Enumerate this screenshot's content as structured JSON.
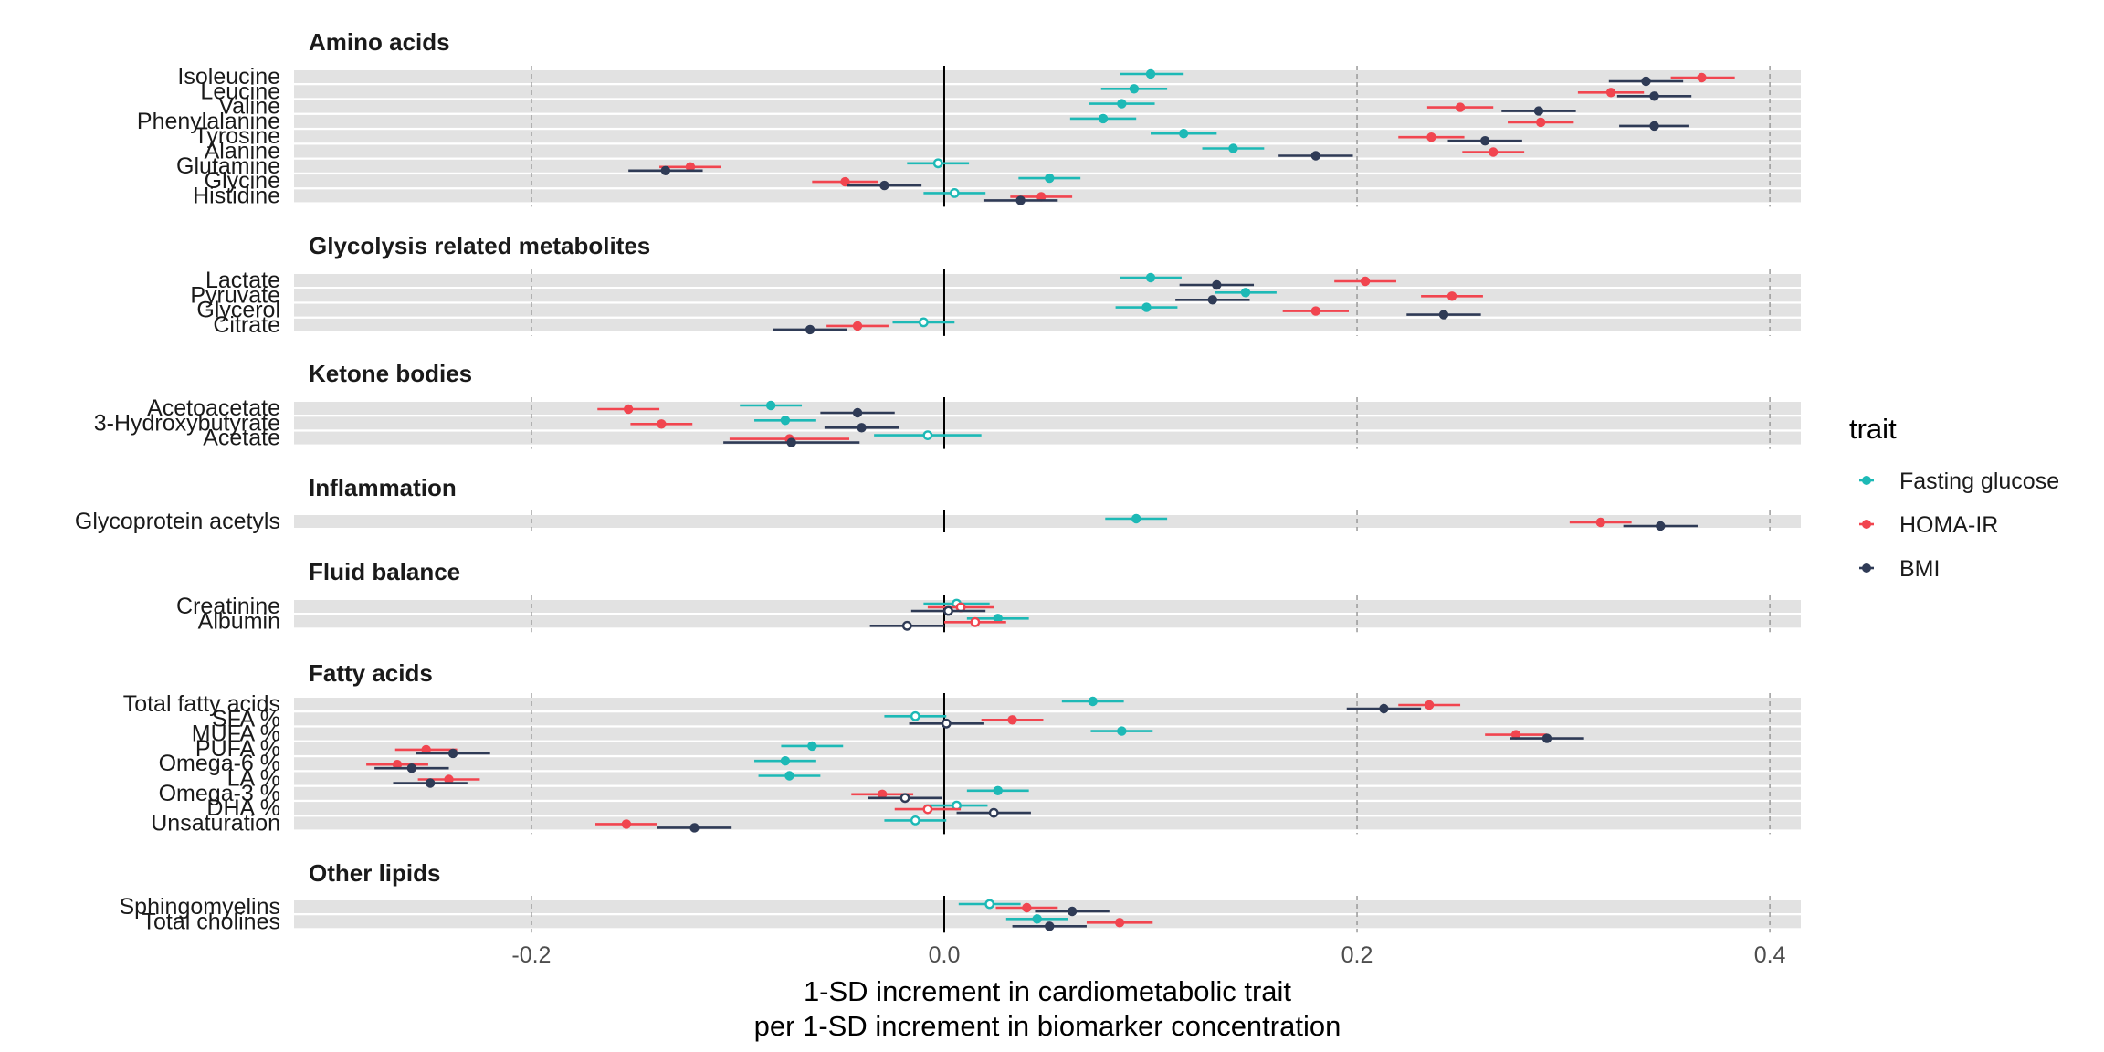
{
  "chart_data": {
    "type": "forest",
    "xlabel_line1": "1-SD increment in cardiometabolic trait",
    "xlabel_line2": "per 1-SD increment in biomarker concentration",
    "xlim": [
      -0.315,
      0.415
    ],
    "x_ticks": [
      -0.2,
      0.0,
      0.2,
      0.4
    ],
    "x_tick_labels": [
      "-0.2",
      "0.0",
      "0.2",
      "0.4"
    ],
    "legend_title": "trait",
    "legend_position": "right",
    "series": [
      {
        "key": "FG",
        "name": "Fasting glucose",
        "color": "#1DB9B6"
      },
      {
        "key": "HOMA",
        "name": "HOMA-IR",
        "color": "#F1454F"
      },
      {
        "key": "BMI",
        "name": "BMI",
        "color": "#2F3B56"
      }
    ],
    "panels": [
      {
        "title": "Amino acids",
        "rows": [
          {
            "label": "Isoleucine",
            "FG": {
              "est": 0.1,
              "lo": 0.085,
              "hi": 0.116,
              "sig": true
            },
            "HOMA": {
              "est": 0.367,
              "lo": 0.352,
              "hi": 0.383,
              "sig": true
            },
            "BMI": {
              "est": 0.34,
              "lo": 0.322,
              "hi": 0.358,
              "sig": true
            }
          },
          {
            "label": "Leucine",
            "FG": {
              "est": 0.092,
              "lo": 0.076,
              "hi": 0.108,
              "sig": true
            },
            "HOMA": {
              "est": 0.323,
              "lo": 0.307,
              "hi": 0.339,
              "sig": true
            },
            "BMI": {
              "est": 0.344,
              "lo": 0.326,
              "hi": 0.362,
              "sig": true
            }
          },
          {
            "label": "Valine",
            "FG": {
              "est": 0.086,
              "lo": 0.07,
              "hi": 0.102,
              "sig": true
            },
            "HOMA": {
              "est": 0.25,
              "lo": 0.234,
              "hi": 0.266,
              "sig": true
            },
            "BMI": {
              "est": 0.288,
              "lo": 0.27,
              "hi": 0.306,
              "sig": true
            }
          },
          {
            "label": "Phenylalanine",
            "FG": {
              "est": 0.077,
              "lo": 0.061,
              "hi": 0.093,
              "sig": true
            },
            "HOMA": {
              "est": 0.289,
              "lo": 0.273,
              "hi": 0.305,
              "sig": true
            },
            "BMI": {
              "est": 0.344,
              "lo": 0.327,
              "hi": 0.361,
              "sig": true
            }
          },
          {
            "label": "Tyrosine",
            "FG": {
              "est": 0.116,
              "lo": 0.1,
              "hi": 0.132,
              "sig": true
            },
            "HOMA": {
              "est": 0.236,
              "lo": 0.22,
              "hi": 0.252,
              "sig": true
            },
            "BMI": {
              "est": 0.262,
              "lo": 0.244,
              "hi": 0.28,
              "sig": true
            }
          },
          {
            "label": "Alanine",
            "FG": {
              "est": 0.14,
              "lo": 0.125,
              "hi": 0.155,
              "sig": true
            },
            "HOMA": {
              "est": 0.266,
              "lo": 0.251,
              "hi": 0.281,
              "sig": true
            },
            "BMI": {
              "est": 0.18,
              "lo": 0.162,
              "hi": 0.198,
              "sig": true
            }
          },
          {
            "label": "Glutamine",
            "FG": {
              "est": -0.003,
              "lo": -0.018,
              "hi": 0.012,
              "sig": false
            },
            "HOMA": {
              "est": -0.123,
              "lo": -0.138,
              "hi": -0.108,
              "sig": true
            },
            "BMI": {
              "est": -0.135,
              "lo": -0.153,
              "hi": -0.117,
              "sig": true
            }
          },
          {
            "label": "Glycine",
            "FG": {
              "est": 0.051,
              "lo": 0.036,
              "hi": 0.066,
              "sig": true
            },
            "HOMA": {
              "est": -0.048,
              "lo": -0.064,
              "hi": -0.032,
              "sig": true
            },
            "BMI": {
              "est": -0.029,
              "lo": -0.047,
              "hi": -0.011,
              "sig": true
            }
          },
          {
            "label": "Histidine",
            "FG": {
              "est": 0.005,
              "lo": -0.01,
              "hi": 0.02,
              "sig": false
            },
            "HOMA": {
              "est": 0.047,
              "lo": 0.032,
              "hi": 0.062,
              "sig": true
            },
            "BMI": {
              "est": 0.037,
              "lo": 0.019,
              "hi": 0.055,
              "sig": true
            }
          }
        ]
      },
      {
        "title": "Glycolysis related metabolites",
        "rows": [
          {
            "label": "Lactate",
            "FG": {
              "est": 0.1,
              "lo": 0.085,
              "hi": 0.115,
              "sig": true
            },
            "HOMA": {
              "est": 0.204,
              "lo": 0.189,
              "hi": 0.219,
              "sig": true
            },
            "BMI": {
              "est": 0.132,
              "lo": 0.114,
              "hi": 0.15,
              "sig": true
            }
          },
          {
            "label": "Pyruvate",
            "FG": {
              "est": 0.146,
              "lo": 0.131,
              "hi": 0.161,
              "sig": true
            },
            "HOMA": {
              "est": 0.246,
              "lo": 0.231,
              "hi": 0.261,
              "sig": true
            },
            "BMI": {
              "est": 0.13,
              "lo": 0.112,
              "hi": 0.148,
              "sig": true
            }
          },
          {
            "label": "Glycerol",
            "FG": {
              "est": 0.098,
              "lo": 0.083,
              "hi": 0.113,
              "sig": true
            },
            "HOMA": {
              "est": 0.18,
              "lo": 0.164,
              "hi": 0.196,
              "sig": true
            },
            "BMI": {
              "est": 0.242,
              "lo": 0.224,
              "hi": 0.26,
              "sig": true
            }
          },
          {
            "label": "Citrate",
            "FG": {
              "est": -0.01,
              "lo": -0.025,
              "hi": 0.005,
              "sig": false
            },
            "HOMA": {
              "est": -0.042,
              "lo": -0.057,
              "hi": -0.027,
              "sig": true
            },
            "BMI": {
              "est": -0.065,
              "lo": -0.083,
              "hi": -0.047,
              "sig": true
            }
          }
        ]
      },
      {
        "title": "Ketone bodies",
        "rows": [
          {
            "label": "Acetoacetate",
            "FG": {
              "est": -0.084,
              "lo": -0.099,
              "hi": -0.069,
              "sig": true
            },
            "HOMA": {
              "est": -0.153,
              "lo": -0.168,
              "hi": -0.138,
              "sig": true
            },
            "BMI": {
              "est": -0.042,
              "lo": -0.06,
              "hi": -0.024,
              "sig": true
            }
          },
          {
            "label": "3-Hydroxybutyrate",
            "FG": {
              "est": -0.077,
              "lo": -0.092,
              "hi": -0.062,
              "sig": true
            },
            "HOMA": {
              "est": -0.137,
              "lo": -0.152,
              "hi": -0.122,
              "sig": true
            },
            "BMI": {
              "est": -0.04,
              "lo": -0.058,
              "hi": -0.022,
              "sig": true
            }
          },
          {
            "label": "Acetate",
            "FG": {
              "est": -0.008,
              "lo": -0.034,
              "hi": 0.018,
              "sig": false
            },
            "HOMA": {
              "est": -0.075,
              "lo": -0.104,
              "hi": -0.046,
              "sig": true
            },
            "BMI": {
              "est": -0.074,
              "lo": -0.107,
              "hi": -0.041,
              "sig": true
            }
          }
        ]
      },
      {
        "title": "Inflammation",
        "rows": [
          {
            "label": "Glycoprotein acetyls",
            "FG": {
              "est": 0.093,
              "lo": 0.078,
              "hi": 0.108,
              "sig": true
            },
            "HOMA": {
              "est": 0.318,
              "lo": 0.303,
              "hi": 0.333,
              "sig": true
            },
            "BMI": {
              "est": 0.347,
              "lo": 0.329,
              "hi": 0.365,
              "sig": true
            }
          }
        ]
      },
      {
        "title": "Fluid balance",
        "rows": [
          {
            "label": "Creatinine",
            "FG": {
              "est": 0.006,
              "lo": -0.01,
              "hi": 0.022,
              "sig": false
            },
            "HOMA": {
              "est": 0.008,
              "lo": -0.008,
              "hi": 0.024,
              "sig": false
            },
            "BMI": {
              "est": 0.002,
              "lo": -0.016,
              "hi": 0.02,
              "sig": false
            }
          },
          {
            "label": "Albumin",
            "FG": {
              "est": 0.026,
              "lo": 0.011,
              "hi": 0.041,
              "sig": true
            },
            "HOMA": {
              "est": 0.015,
              "lo": 0.0,
              "hi": 0.03,
              "sig": false
            },
            "BMI": {
              "est": -0.018,
              "lo": -0.036,
              "hi": 0.0,
              "sig": false
            }
          }
        ]
      },
      {
        "title": "Fatty acids",
        "rows": [
          {
            "label": "Total fatty acids",
            "FG": {
              "est": 0.072,
              "lo": 0.057,
              "hi": 0.087,
              "sig": true
            },
            "HOMA": {
              "est": 0.235,
              "lo": 0.22,
              "hi": 0.25,
              "sig": true
            },
            "BMI": {
              "est": 0.213,
              "lo": 0.195,
              "hi": 0.231,
              "sig": true
            }
          },
          {
            "label": "SFA %",
            "FG": {
              "est": -0.014,
              "lo": -0.029,
              "hi": 0.001,
              "sig": false
            },
            "HOMA": {
              "est": 0.033,
              "lo": 0.018,
              "hi": 0.048,
              "sig": true
            },
            "BMI": {
              "est": 0.001,
              "lo": -0.017,
              "hi": 0.019,
              "sig": false
            }
          },
          {
            "label": "MUFA %",
            "FG": {
              "est": 0.086,
              "lo": 0.071,
              "hi": 0.101,
              "sig": true
            },
            "HOMA": {
              "est": 0.277,
              "lo": 0.262,
              "hi": 0.292,
              "sig": true
            },
            "BMI": {
              "est": 0.292,
              "lo": 0.274,
              "hi": 0.31,
              "sig": true
            }
          },
          {
            "label": "PUFA %",
            "FG": {
              "est": -0.064,
              "lo": -0.079,
              "hi": -0.049,
              "sig": true
            },
            "HOMA": {
              "est": -0.251,
              "lo": -0.266,
              "hi": -0.236,
              "sig": true
            },
            "BMI": {
              "est": -0.238,
              "lo": -0.256,
              "hi": -0.22,
              "sig": true
            }
          },
          {
            "label": "Omega-6 %",
            "FG": {
              "est": -0.077,
              "lo": -0.092,
              "hi": -0.062,
              "sig": true
            },
            "HOMA": {
              "est": -0.265,
              "lo": -0.28,
              "hi": -0.25,
              "sig": true
            },
            "BMI": {
              "est": -0.258,
              "lo": -0.276,
              "hi": -0.24,
              "sig": true
            }
          },
          {
            "label": "LA %",
            "FG": {
              "est": -0.075,
              "lo": -0.09,
              "hi": -0.06,
              "sig": true
            },
            "HOMA": {
              "est": -0.24,
              "lo": -0.255,
              "hi": -0.225,
              "sig": true
            },
            "BMI": {
              "est": -0.249,
              "lo": -0.267,
              "hi": -0.231,
              "sig": true
            }
          },
          {
            "label": "Omega-3 %",
            "FG": {
              "est": 0.026,
              "lo": 0.011,
              "hi": 0.041,
              "sig": true
            },
            "HOMA": {
              "est": -0.03,
              "lo": -0.045,
              "hi": -0.015,
              "sig": true
            },
            "BMI": {
              "est": -0.019,
              "lo": -0.037,
              "hi": -0.001,
              "sig": false
            }
          },
          {
            "label": "DHA %",
            "FG": {
              "est": 0.006,
              "lo": -0.009,
              "hi": 0.021,
              "sig": false
            },
            "HOMA": {
              "est": -0.008,
              "lo": -0.024,
              "hi": 0.008,
              "sig": false
            },
            "BMI": {
              "est": 0.024,
              "lo": 0.006,
              "hi": 0.042,
              "sig": false
            }
          },
          {
            "label": "Unsaturation",
            "FG": {
              "est": -0.014,
              "lo": -0.029,
              "hi": 0.001,
              "sig": false
            },
            "HOMA": {
              "est": -0.154,
              "lo": -0.169,
              "hi": -0.139,
              "sig": true
            },
            "BMI": {
              "est": -0.121,
              "lo": -0.139,
              "hi": -0.103,
              "sig": true
            }
          }
        ]
      },
      {
        "title": "Other lipids",
        "rows": [
          {
            "label": "Sphingomyelins",
            "FG": {
              "est": 0.022,
              "lo": 0.007,
              "hi": 0.037,
              "sig": false
            },
            "HOMA": {
              "est": 0.04,
              "lo": 0.025,
              "hi": 0.055,
              "sig": true
            },
            "BMI": {
              "est": 0.062,
              "lo": 0.044,
              "hi": 0.08,
              "sig": true
            }
          },
          {
            "label": "Total cholines",
            "FG": {
              "est": 0.045,
              "lo": 0.03,
              "hi": 0.06,
              "sig": true
            },
            "HOMA": {
              "est": 0.085,
              "lo": 0.069,
              "hi": 0.101,
              "sig": true
            },
            "BMI": {
              "est": 0.051,
              "lo": 0.033,
              "hi": 0.069,
              "sig": true
            }
          }
        ]
      }
    ]
  }
}
